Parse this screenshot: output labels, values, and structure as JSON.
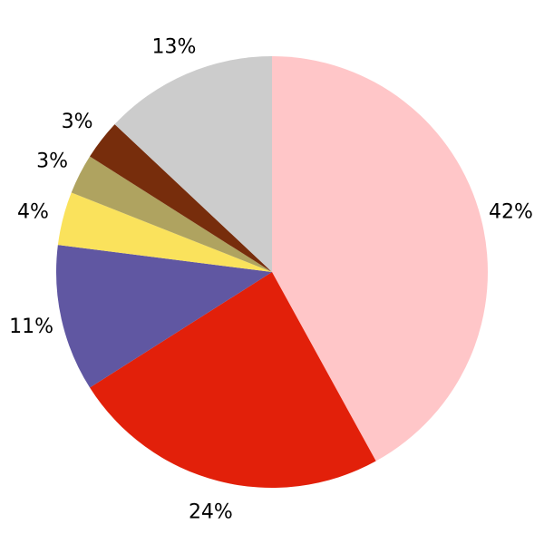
{
  "chart_data": {
    "type": "pie",
    "title": "",
    "legend": "none",
    "background": "#ffffff",
    "label_color": "#000000",
    "direction": "clockwise",
    "start_angle": "12-oclock",
    "total": 100,
    "categories": [
      "42%",
      "24%",
      "11%",
      "4%",
      "3%",
      "3%",
      "13%"
    ],
    "values": [
      42,
      24,
      11,
      4,
      3,
      3,
      13
    ],
    "slices": [
      {
        "label": "42%",
        "value": 42,
        "color": "#FFC6C8"
      },
      {
        "label": "24%",
        "value": 24,
        "color": "#E2200A"
      },
      {
        "label": "11%",
        "value": 11,
        "color": "#6057A2"
      },
      {
        "label": "4%",
        "value": 4,
        "color": "#FAE25C"
      },
      {
        "label": "3%",
        "value": 3,
        "color": "#AFA360"
      },
      {
        "label": "3%",
        "value": 3,
        "color": "#772D0C"
      },
      {
        "label": "13%",
        "value": 13,
        "color": "#CCCCCC"
      }
    ]
  }
}
